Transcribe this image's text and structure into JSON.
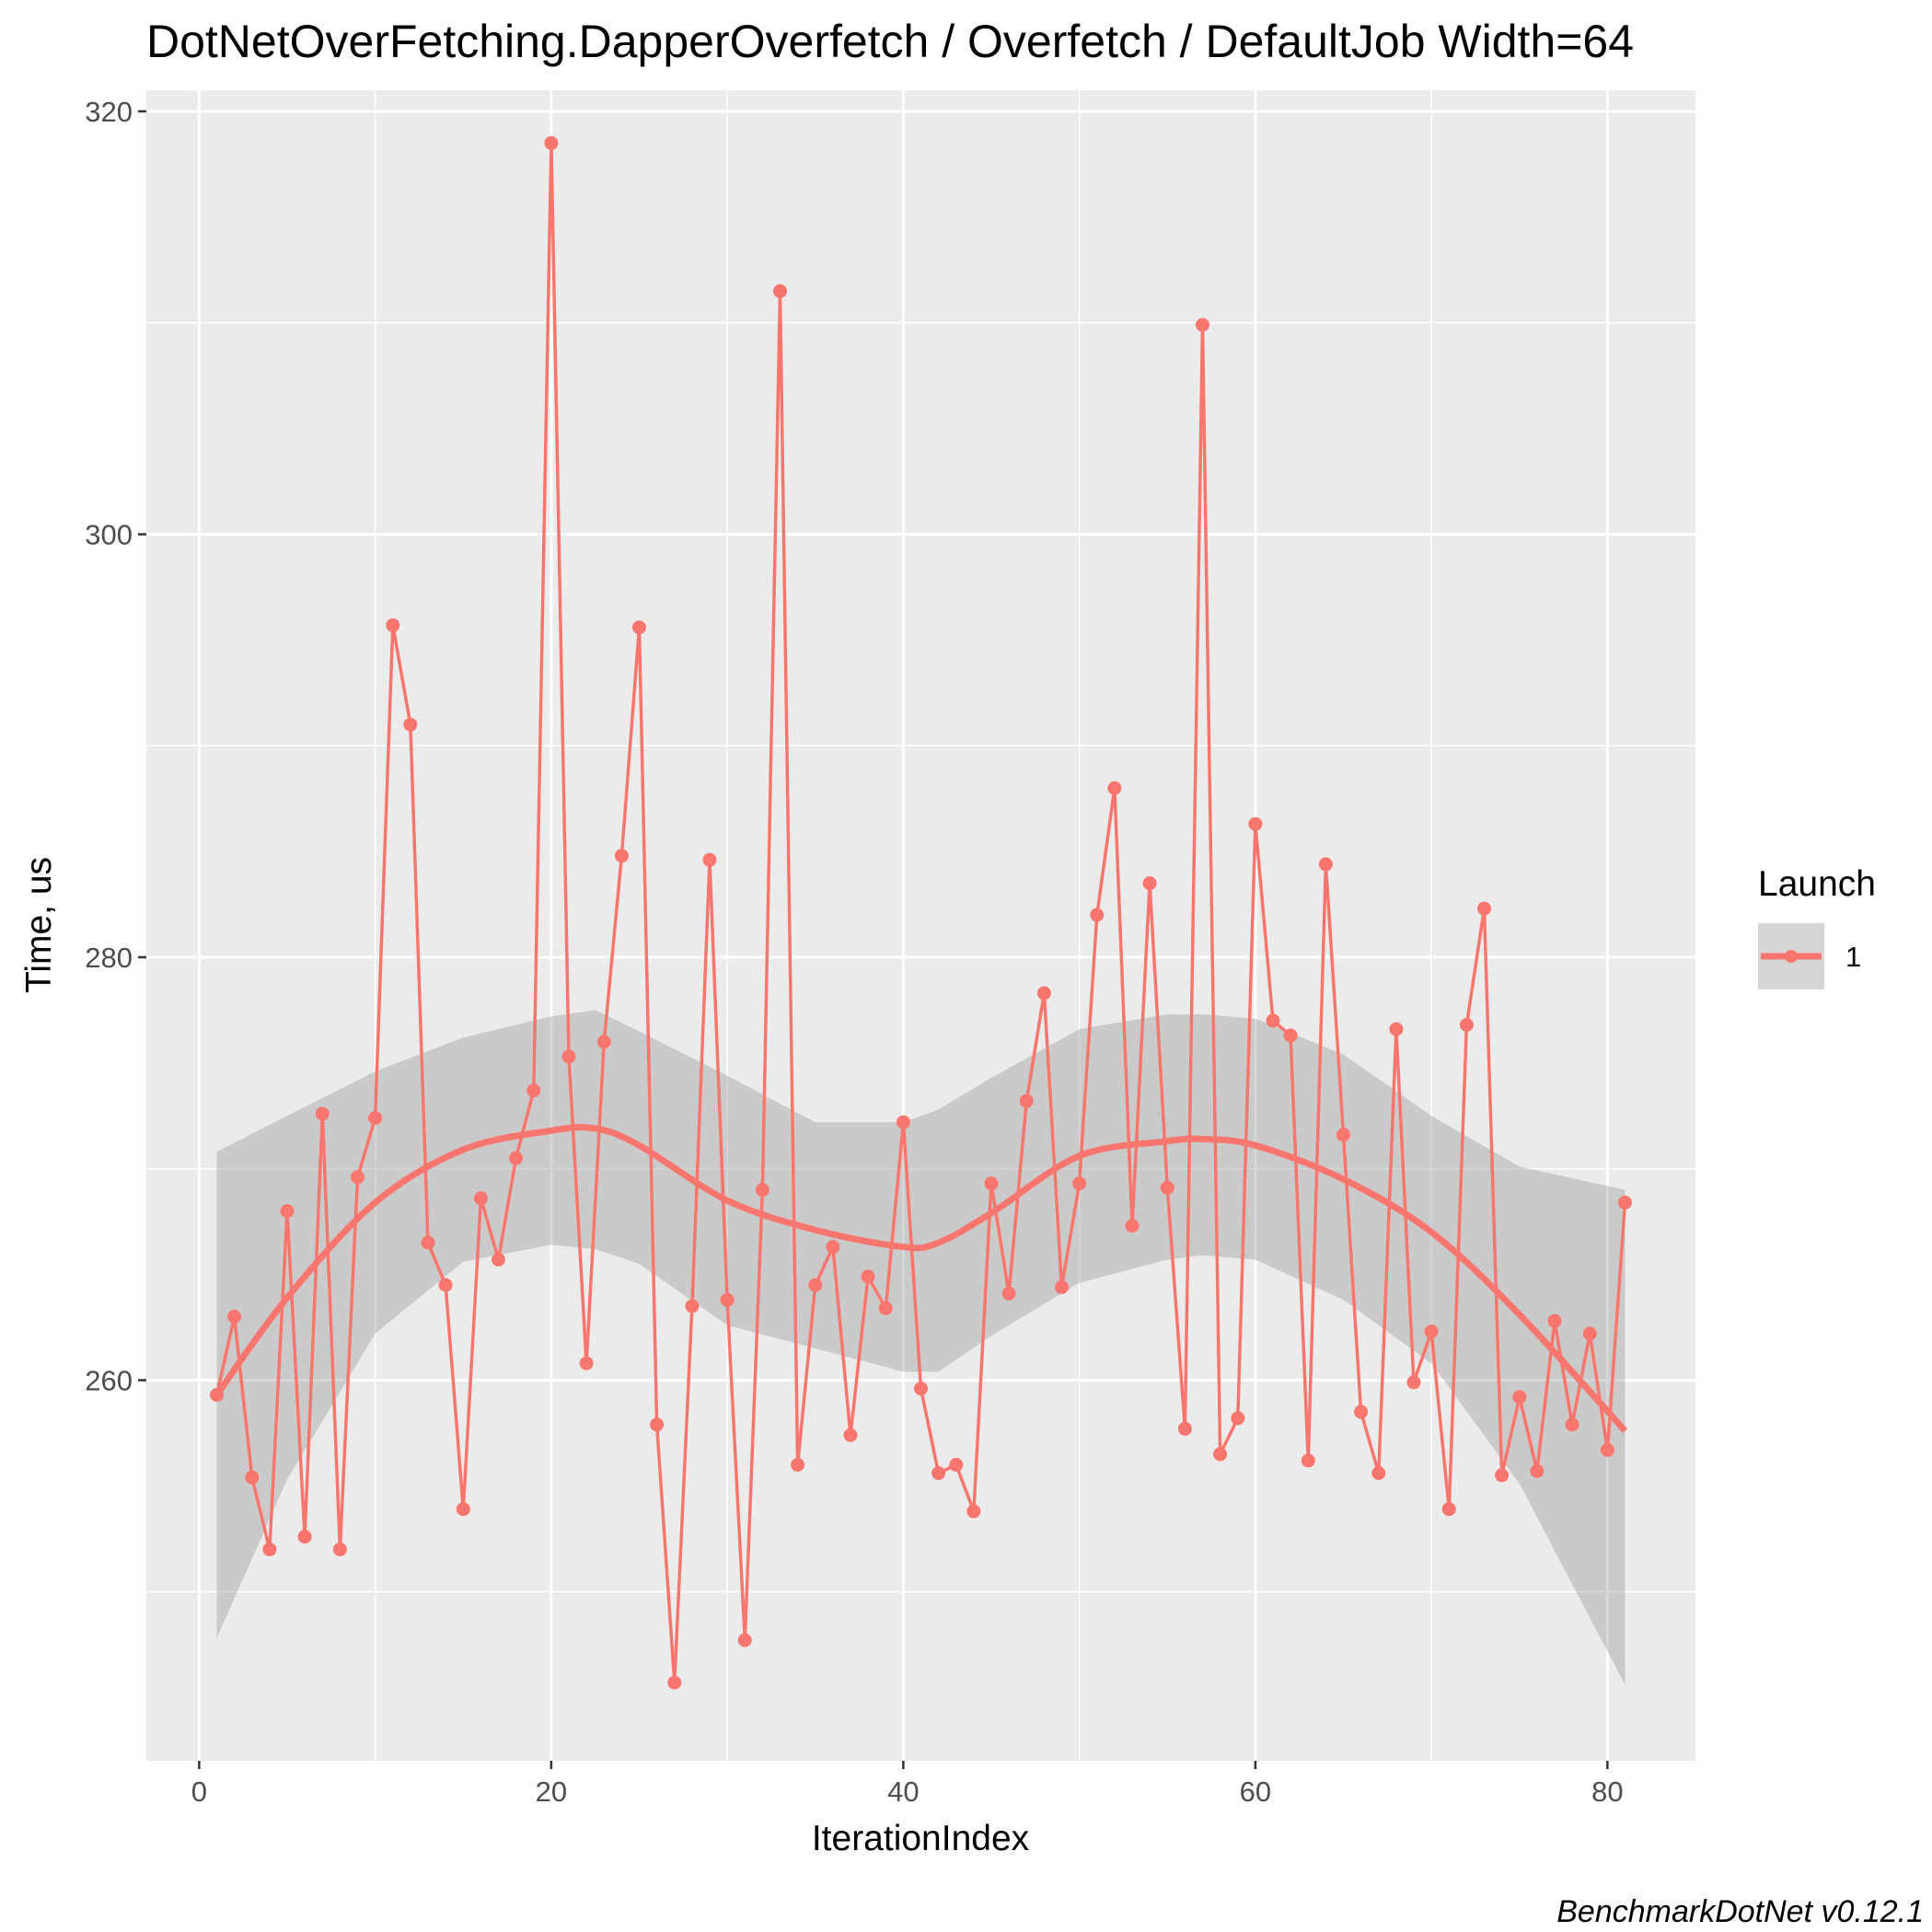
{
  "chart_data": {
    "type": "line",
    "title": "DotNetOverFetching.DapperOverfetch / Overfetch / DefaultJob Width=64",
    "xlabel": "IterationIndex",
    "ylabel": "Time, us",
    "caption": "BenchmarkDotNet v0.12.1",
    "xlim": [
      -3,
      85
    ],
    "ylim": [
      242,
      321
    ],
    "x_ticks": [
      0,
      20,
      40,
      60,
      80
    ],
    "y_ticks": [
      260,
      280,
      300,
      320
    ],
    "grid": true,
    "legend": {
      "title": "Launch",
      "position": "right",
      "entries": [
        "1"
      ]
    },
    "colors": {
      "series": "#f8766d",
      "band": "#999999",
      "panel": "#ebebeb",
      "grid": "#ffffff"
    },
    "series": [
      {
        "name": "1",
        "x": [
          1,
          2,
          3,
          4,
          5,
          6,
          7,
          8,
          9,
          10,
          11,
          12,
          13,
          14,
          15,
          16,
          17,
          18,
          19,
          20,
          21,
          22,
          23,
          24,
          25,
          26,
          27,
          28,
          29,
          30,
          31,
          32,
          33,
          34,
          35,
          36,
          37,
          38,
          39,
          40,
          41,
          42,
          43,
          44,
          45,
          46,
          47,
          48,
          49,
          50,
          51,
          52,
          53,
          54,
          55,
          56,
          57,
          58,
          59,
          60,
          61,
          62,
          63,
          64,
          65,
          66,
          67,
          68,
          69,
          70,
          71,
          72,
          73,
          74,
          75,
          76,
          77,
          78,
          79,
          80,
          81
        ],
        "values": [
          259.3,
          263.0,
          255.4,
          252.0,
          268.0,
          252.6,
          272.6,
          252.0,
          269.6,
          272.4,
          295.7,
          291.0,
          266.5,
          264.5,
          253.9,
          268.6,
          265.7,
          270.5,
          273.7,
          318.5,
          275.3,
          260.8,
          276.0,
          284.8,
          295.6,
          257.9,
          245.7,
          263.5,
          284.6,
          263.8,
          247.7,
          269.0,
          311.5,
          256.0,
          264.5,
          266.3,
          257.4,
          264.9,
          263.4,
          272.2,
          259.6,
          255.6,
          256.0,
          253.8,
          269.3,
          264.1,
          273.2,
          278.3,
          264.4,
          269.3,
          282.0,
          288.0,
          267.3,
          283.5,
          269.1,
          257.7,
          309.9,
          256.5,
          258.2,
          286.3,
          277.0,
          276.3,
          256.2,
          284.4,
          271.6,
          258.5,
          255.6,
          276.6,
          259.9,
          262.3,
          253.9,
          276.8,
          282.3,
          255.5,
          259.2,
          255.7,
          262.8,
          257.9,
          262.2,
          256.7,
          268.4
        ]
      }
    ],
    "smooth": {
      "x": [
        1,
        5,
        10,
        15,
        20,
        22.5,
        25,
        30,
        35,
        40,
        42,
        45,
        50,
        55,
        57,
        60,
        65,
        70,
        75,
        81
      ],
      "y": [
        259.3,
        263.9,
        268.4,
        270.9,
        271.8,
        271.9,
        271.1,
        268.5,
        267.1,
        266.3,
        266.5,
        267.9,
        270.6,
        271.3,
        271.4,
        271.1,
        269.5,
        267.0,
        263.1,
        257.6
      ],
      "upper": [
        270.8,
        272.5,
        274.6,
        276.2,
        277.2,
        277.5,
        276.5,
        274.4,
        272.2,
        272.2,
        272.8,
        274.3,
        276.6,
        277.3,
        277.3,
        277.1,
        275.4,
        272.5,
        270.1,
        269.0
      ],
      "lower": [
        247.8,
        255.3,
        262.2,
        265.6,
        266.4,
        266.2,
        265.5,
        262.6,
        261.5,
        260.4,
        260.4,
        262.1,
        264.6,
        265.7,
        265.9,
        265.7,
        263.8,
        260.8,
        255.1,
        245.6
      ]
    }
  }
}
